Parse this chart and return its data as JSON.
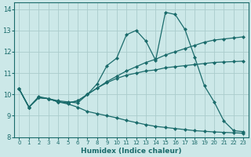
{
  "xlabel": "Humidex (Indice chaleur)",
  "background_color": "#cce8e8",
  "grid_color": "#aacccc",
  "line_color": "#1a6b6b",
  "xlim": [
    -0.5,
    23.5
  ],
  "ylim": [
    8,
    14.3
  ],
  "yticks": [
    8,
    9,
    10,
    11,
    12,
    13,
    14
  ],
  "xticks": [
    0,
    1,
    2,
    3,
    4,
    5,
    6,
    7,
    8,
    9,
    10,
    11,
    12,
    13,
    14,
    15,
    16,
    17,
    18,
    19,
    20,
    21,
    22,
    23
  ],
  "series": [
    [
      10.25,
      9.4,
      9.9,
      9.8,
      9.7,
      9.65,
      9.6,
      10.0,
      10.5,
      11.35,
      11.7,
      12.8,
      13.0,
      12.5,
      11.6,
      13.85,
      13.75,
      13.05,
      11.75,
      10.4,
      9.65,
      8.75,
      8.3,
      8.25
    ],
    [
      10.25,
      9.4,
      9.85,
      9.8,
      9.65,
      9.6,
      9.7,
      10.0,
      10.3,
      10.6,
      10.85,
      11.1,
      11.3,
      11.5,
      11.65,
      11.85,
      12.0,
      12.15,
      12.3,
      12.45,
      12.55,
      12.6,
      12.65,
      12.7
    ],
    [
      10.25,
      9.4,
      9.85,
      9.8,
      9.65,
      9.6,
      9.7,
      10.0,
      10.3,
      10.55,
      10.75,
      10.9,
      11.0,
      11.1,
      11.15,
      11.25,
      11.3,
      11.35,
      11.4,
      11.45,
      11.5,
      11.52,
      11.54,
      11.56
    ],
    [
      10.25,
      9.4,
      9.85,
      9.8,
      9.65,
      9.55,
      9.4,
      9.2,
      9.1,
      9.0,
      8.9,
      8.78,
      8.68,
      8.58,
      8.5,
      8.45,
      8.4,
      8.35,
      8.3,
      8.27,
      8.24,
      8.22,
      8.2,
      8.18
    ]
  ]
}
